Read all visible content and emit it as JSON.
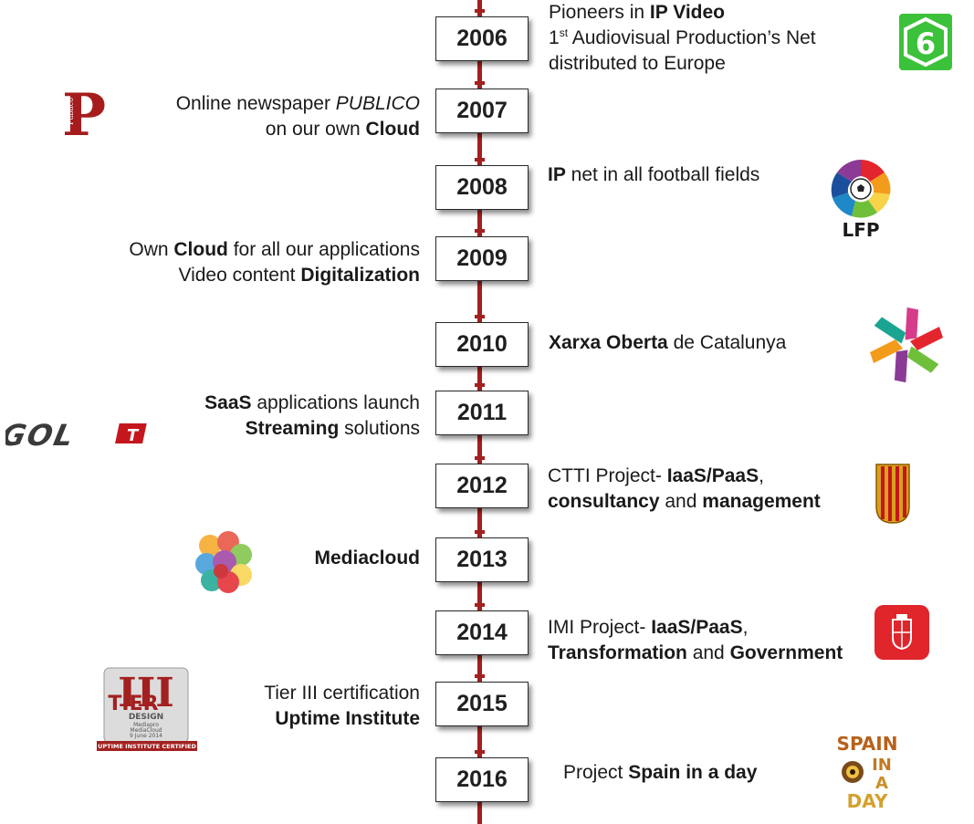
{
  "timeline": [
    {
      "year": "2006",
      "side": "right",
      "lines": [
        [
          {
            "t": "Pioneers in "
          },
          {
            "t": "IP Video",
            "b": true
          }
        ],
        [
          {
            "t": "1"
          },
          {
            "t": "st",
            "sup": true
          },
          {
            "t": " Audiovisual Production’s Net"
          }
        ],
        [
          {
            "t": "distributed to Europe"
          }
        ]
      ]
    },
    {
      "year": "2007",
      "side": "left",
      "lines": [
        [
          {
            "t": "Online newspaper "
          },
          {
            "t": "PUBLICO",
            "i": true
          }
        ],
        [
          {
            "t": "on our own "
          },
          {
            "t": "Cloud",
            "b": true
          }
        ]
      ]
    },
    {
      "year": "2008",
      "side": "right",
      "lines": [
        [
          {
            "t": "IP",
            "b": true
          },
          {
            "t": " net in all football fields"
          }
        ]
      ]
    },
    {
      "year": "2009",
      "side": "left",
      "lines": [
        [
          {
            "t": "Own "
          },
          {
            "t": "Cloud",
            "b": true
          },
          {
            "t": " for all our applications"
          }
        ],
        [
          {
            "t": "Video content "
          },
          {
            "t": "Digitalization",
            "b": true
          }
        ]
      ]
    },
    {
      "year": "2010",
      "side": "right",
      "lines": [
        [
          {
            "t": "Xarxa Oberta",
            "b": true
          },
          {
            "t": " de Catalunya"
          }
        ]
      ]
    },
    {
      "year": "2011",
      "side": "left",
      "lines": [
        [
          {
            "t": "SaaS",
            "b": true
          },
          {
            "t": " applications launch"
          }
        ],
        [
          {
            "t": "Streaming",
            "b": true
          },
          {
            "t": " solutions"
          }
        ]
      ]
    },
    {
      "year": "2012",
      "side": "right",
      "lines": [
        [
          {
            "t": "CTTI Project- "
          },
          {
            "t": "IaaS/PaaS",
            "b": true
          },
          {
            "t": ","
          }
        ],
        [
          {
            "t": "consultancy",
            "b": true
          },
          {
            "t": " and "
          },
          {
            "t": "management",
            "b": true
          }
        ]
      ]
    },
    {
      "year": "2013",
      "side": "left",
      "lines": [
        [
          {
            "t": "Mediacloud",
            "b": true
          }
        ]
      ]
    },
    {
      "year": "2014",
      "side": "right",
      "lines": [
        [
          {
            "t": "IMI Project- "
          },
          {
            "t": "IaaS/PaaS",
            "b": true
          },
          {
            "t": ","
          }
        ],
        [
          {
            "t": "Transformation",
            "b": true
          },
          {
            "t": " and "
          },
          {
            "t": "Government",
            "b": true
          }
        ]
      ]
    },
    {
      "year": "2015",
      "side": "left",
      "lines": [
        [
          {
            "t": "Tier III certification"
          }
        ],
        [
          {
            "t": "Uptime Institute",
            "b": true
          }
        ]
      ]
    },
    {
      "year": "2016",
      "side": "right",
      "lines": [
        [
          {
            "t": "Project "
          },
          {
            "t": "Spain in a day",
            "b": true
          }
        ]
      ]
    }
  ],
  "logos": {
    "publico": {
      "letter": "P",
      "vertical_text": "Público",
      "color": "#a61c1c"
    },
    "la_sexta": {
      "digit": "6",
      "color": "#3cc13a"
    },
    "lfp": {
      "text": "LFP"
    },
    "xarxa": {
      "colors": [
        "#e3262d",
        "#6fbf3a",
        "#8b3a96",
        "#f39b1a",
        "#1aa592",
        "#d63c8a"
      ]
    },
    "golt": {
      "text": "GOL",
      "mark": "T"
    },
    "generalitat": {
      "color": "#d8a21a",
      "stripe": "#c4161c"
    },
    "mediacloud": {
      "colors": [
        "#f5a623",
        "#e84e3c",
        "#7cc242",
        "#3b9ad9",
        "#9b3fa0",
        "#f7d34a"
      ]
    },
    "barcelona": {
      "color": "#e0252b"
    },
    "tier": {
      "numeral": "III",
      "word": "TIER",
      "sub": "DESIGN",
      "l1": "Mediapro",
      "l2": "MediaCloud",
      "l3": "9 June 2014",
      "band": "UPTIME INSTITUTE CERTIFIED"
    },
    "spain": {
      "w1": "SPAIN",
      "w2": "IN",
      "w3": "A",
      "w4": "DAY"
    }
  }
}
